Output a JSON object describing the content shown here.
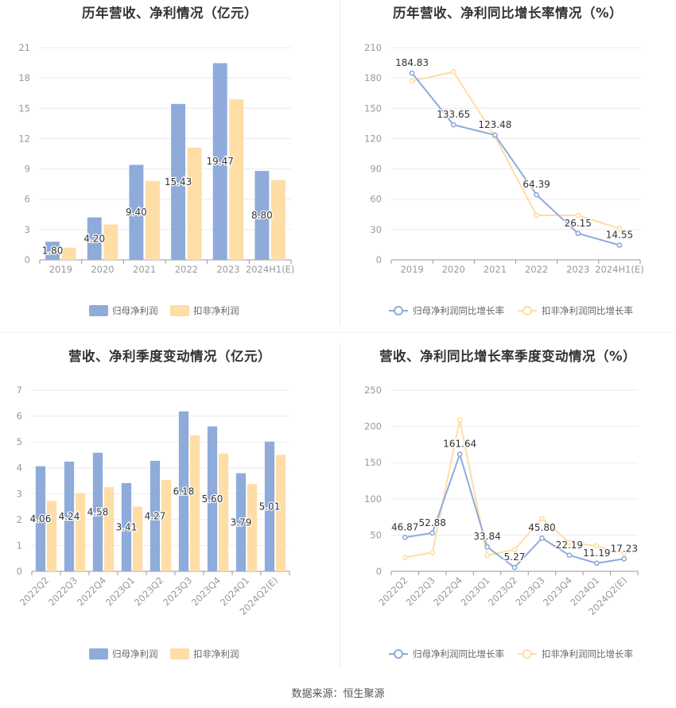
{
  "colors": {
    "blue": "#8EABDA",
    "orange": "#FFDDA6",
    "grid": "#e9ebf0",
    "axis": "#9a9a9a",
    "tick_text": "#999999",
    "label_text": "#333333"
  },
  "footer": "数据来源：恒生聚源",
  "chart_data": [
    {
      "type": "bar",
      "title": "历年营收、净利情况（亿元）",
      "categories": [
        "2019",
        "2020",
        "2021",
        "2022",
        "2023",
        "2024H1(E)"
      ],
      "series": [
        {
          "name": "归母净利润",
          "values": [
            1.8,
            4.2,
            9.4,
            15.43,
            19.47,
            8.8
          ]
        },
        {
          "name": "扣非净利润",
          "values": [
            1.2,
            3.5,
            7.8,
            11.1,
            15.9,
            7.9
          ]
        }
      ],
      "data_labels": [
        "1.80",
        "4.20",
        "9.40",
        "15.43",
        "19.47",
        "8.80"
      ],
      "yticks": [
        0,
        3,
        6,
        9,
        12,
        15,
        18,
        21
      ],
      "ylim": [
        0,
        21
      ],
      "legend": "bottom",
      "grid": true
    },
    {
      "type": "line",
      "title": "历年营收、净利同比增长率情况（%）",
      "categories": [
        "2019",
        "2020",
        "2021",
        "2022",
        "2023",
        "2024H1(E)"
      ],
      "series": [
        {
          "name": "归母净利润同比增长率",
          "values": [
            184.83,
            133.65,
            123.48,
            64.39,
            26.15,
            14.55
          ]
        },
        {
          "name": "扣非净利润同比增长率",
          "values": [
            177,
            186,
            122,
            44,
            44,
            31
          ]
        }
      ],
      "data_labels": [
        "184.83",
        "133.65",
        "123.48",
        "64.39",
        "26.15",
        "14.55"
      ],
      "yticks": [
        0,
        30,
        60,
        90,
        120,
        150,
        180,
        210
      ],
      "ylim": [
        0,
        210
      ],
      "legend": "bottom",
      "grid": true
    },
    {
      "type": "bar",
      "title": "营收、净利季度变动情况（亿元）",
      "categories": [
        "2022Q2",
        "2022Q3",
        "2022Q4",
        "2023Q1",
        "2023Q2",
        "2023Q3",
        "2023Q4",
        "2024Q1",
        "2024Q2(E)"
      ],
      "series": [
        {
          "name": "归母净利润",
          "values": [
            4.06,
            4.24,
            4.58,
            3.41,
            4.27,
            6.18,
            5.6,
            3.79,
            5.01
          ]
        },
        {
          "name": "扣非净利润",
          "values": [
            2.72,
            3.02,
            3.25,
            2.5,
            3.53,
            5.25,
            4.55,
            3.38,
            4.5
          ]
        }
      ],
      "data_labels": [
        "4.06",
        "4.24",
        "4.58",
        "3.41",
        "4.27",
        "6.18",
        "5.60",
        "3.79",
        "5.01"
      ],
      "yticks": [
        0,
        1,
        2,
        3,
        4,
        5,
        6,
        7
      ],
      "ylim": [
        0,
        7
      ],
      "legend": "bottom",
      "grid": true
    },
    {
      "type": "line",
      "title": "营收、净利同比增长率季度变动情况（%）",
      "categories": [
        "2022Q2",
        "2022Q3",
        "2022Q4",
        "2023Q1",
        "2023Q2",
        "2023Q3",
        "2023Q4",
        "2024Q1",
        "2024Q2(E)"
      ],
      "series": [
        {
          "name": "归母净利润同比增长率",
          "values": [
            46.87,
            52.88,
            161.64,
            33.84,
            5.27,
            45.8,
            22.19,
            11.19,
            17.23
          ]
        },
        {
          "name": "扣非净利润同比增长率",
          "values": [
            19,
            26,
            209,
            22,
            30,
            73,
            40,
            35,
            25
          ]
        }
      ],
      "data_labels": [
        "46.87",
        "52.88",
        "161.64",
        "33.84",
        "5.27",
        "45.80",
        "22.19",
        "11.19",
        "17.23"
      ],
      "yticks": [
        0,
        50,
        100,
        150,
        200,
        250
      ],
      "ylim": [
        0,
        250
      ],
      "legend": "bottom",
      "grid": true
    }
  ]
}
